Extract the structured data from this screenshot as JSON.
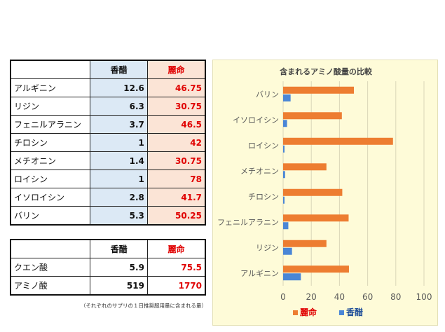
{
  "table1": {
    "headers": [
      "",
      "香醋",
      "麗命"
    ],
    "rows": [
      {
        "name": "アルギニン",
        "a": "12.6",
        "b": "46.75"
      },
      {
        "name": "リジン",
        "a": "6.3",
        "b": "30.75"
      },
      {
        "name": "フェニルアラニン",
        "a": "3.7",
        "b": "46.5"
      },
      {
        "name": "チロシン",
        "a": "1",
        "b": "42"
      },
      {
        "name": "メチオニン",
        "a": "1.4",
        "b": "30.75"
      },
      {
        "name": "ロイシン",
        "a": "1",
        "b": "78"
      },
      {
        "name": "イソロイシン",
        "a": "2.8",
        "b": "41.7"
      },
      {
        "name": "バリン",
        "a": "5.3",
        "b": "50.25"
      }
    ]
  },
  "table2": {
    "headers": [
      "",
      "香醋",
      "麗命"
    ],
    "rows": [
      {
        "name": "クエン酸",
        "a": "5.9",
        "b": "75.5"
      },
      {
        "name": "アミノ酸",
        "a": "519",
        "b": "1770"
      }
    ]
  },
  "footnote": "（それぞれのサプリの１日推奨服用量に含まれる量）",
  "colors": {
    "series_a": "#4a86d6",
    "series_b": "#ed7d31",
    "value_b_text": "#e00000",
    "chart_bg": "#fefbd8"
  },
  "chart_data": {
    "type": "bar",
    "orientation": "horizontal",
    "title": "含まれるアミノ酸量の比較",
    "categories": [
      "アルギニン",
      "リジン",
      "フェニルアラニン",
      "チロシン",
      "メチオニン",
      "ロイシン",
      "イソロイシン",
      "バリン"
    ],
    "series": [
      {
        "name": "麗命",
        "values": [
          46.75,
          30.75,
          46.5,
          42,
          30.75,
          78,
          41.7,
          50.25
        ]
      },
      {
        "name": "香醋",
        "values": [
          12.6,
          6.3,
          3.7,
          1,
          1.4,
          1,
          2.8,
          5.3
        ]
      }
    ],
    "xlim": [
      0,
      100
    ],
    "xticks": [
      "0",
      "20",
      "40",
      "60",
      "80",
      "100"
    ],
    "grid": true,
    "legend": "bottom"
  }
}
